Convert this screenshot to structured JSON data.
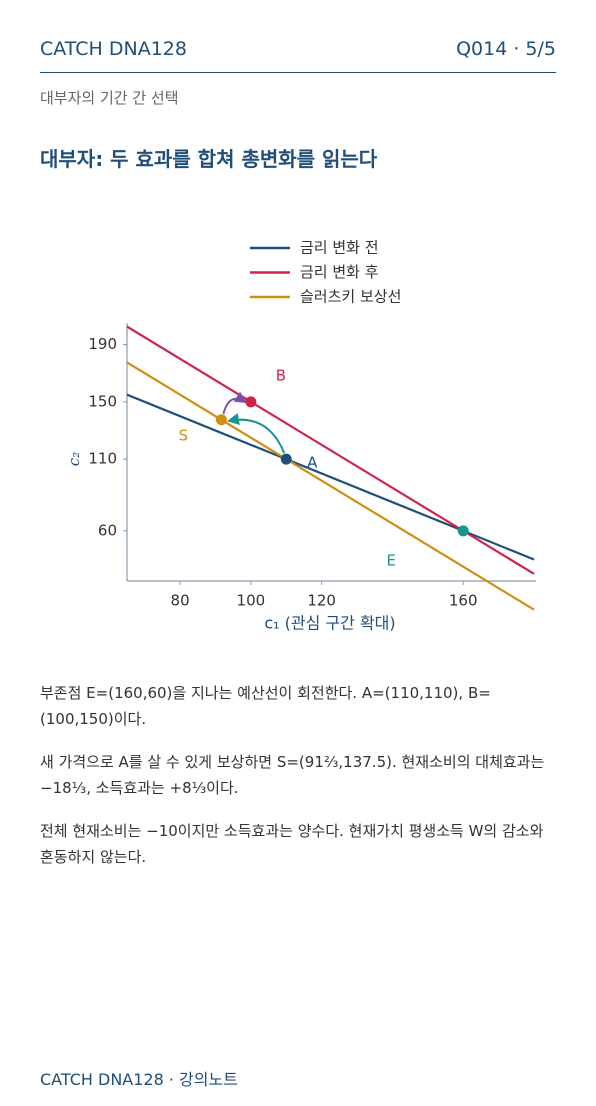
{
  "header": {
    "brand": "CATCH DNA128",
    "page": "Q014 · 5/5",
    "subtitle": "대부자의 기간 간 선택",
    "title": "대부자: 두 효과를 합쳐 총변화를 읽는다"
  },
  "chart_data": {
    "type": "line",
    "xlabel": "c₁ (관심 구간 확대)",
    "ylabel": "c₂",
    "xlim": [
      65,
      180
    ],
    "ylim": [
      25,
      205
    ],
    "xticks": [
      80,
      100,
      120,
      160
    ],
    "yticks": [
      60,
      110,
      150,
      190
    ],
    "series": [
      {
        "name": "금리 변화 전",
        "color": "#1f4e79",
        "x": [
          65,
          180
        ],
        "values": [
          155,
          40
        ]
      },
      {
        "name": "금리 변화 후",
        "color": "#d0234a",
        "x": [
          65,
          180
        ],
        "values": [
          202.5,
          30
        ]
      },
      {
        "name": "슬러츠키 보상선",
        "color": "#d08f14",
        "x": [
          65,
          180
        ],
        "values": [
          177.5,
          5
        ]
      }
    ],
    "points": [
      {
        "name": "A",
        "color": "#1f4e79",
        "x": 110,
        "y": 110
      },
      {
        "name": "B",
        "color": "#d0234a",
        "x": 100,
        "y": 150
      },
      {
        "name": "S",
        "color": "#d08f14",
        "x": 91.67,
        "y": 137.5
      },
      {
        "name": "E",
        "color": "#17958f",
        "x": 160,
        "y": 60
      }
    ]
  },
  "body": {
    "paragraphs": [
      "부존점 E=(160,60)을 지나는 예산선이 회전한다. A=(110,110), B=(100,150)이다.",
      "새 가격으로 A를 살 수 있게 보상하면 S=(91⅔,137.5). 현재소비의 대체효과는 −18⅓, 소득효과는 +8⅓이다.",
      "전체 현재소비는 −10이지만 소득효과는 양수다. 현재가치 평생소득 W의 감소와 혼동하지 않는다."
    ]
  },
  "footer": {
    "text": "CATCH DNA128 · 강의노트"
  }
}
